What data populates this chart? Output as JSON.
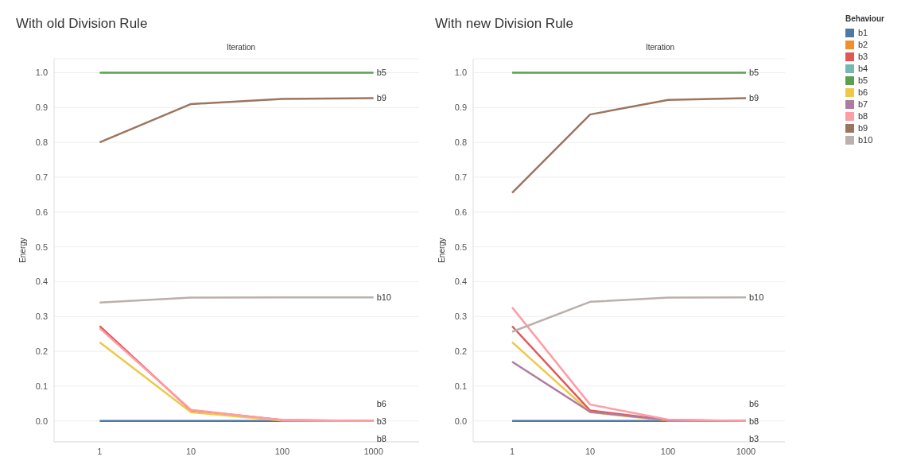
{
  "chart_data": [
    {
      "type": "line",
      "title": "With old Division Rule",
      "xlabel": "Iteration",
      "ylabel": "Energy",
      "categories": [
        "1",
        "10",
        "100",
        "1000"
      ],
      "ylim": [
        -0.06,
        1.04
      ],
      "yticks": [
        {
          "value": 0,
          "label": "0.0"
        },
        {
          "value": 0.1,
          "label": "0.1"
        },
        {
          "value": 0.2,
          "label": "0.2"
        },
        {
          "value": 0.3,
          "label": "0.3"
        },
        {
          "value": 0.4,
          "label": "0.4"
        },
        {
          "value": 0.5,
          "label": "0.5"
        },
        {
          "value": 0.6,
          "label": "0.6"
        },
        {
          "value": 0.7,
          "label": "0.7"
        },
        {
          "value": 0.8,
          "label": "0.8"
        },
        {
          "value": 0.9,
          "label": "0.9"
        },
        {
          "value": 1,
          "label": "1.0"
        }
      ],
      "grid": "y",
      "legend": false,
      "marker": "none",
      "line_style": "solid",
      "series": [
        {
          "color": "#4e79a7",
          "values": [
            0,
            0,
            0,
            0
          ]
        },
        {
          "color": "#e15759",
          "values": [
            0.272,
            0.03,
            0.003,
            0
          ]
        },
        {
          "color": "#59a14f",
          "values": [
            1,
            1,
            1,
            1
          ]
        },
        {
          "color": "#edc948",
          "values": [
            0.226,
            0.025,
            0.001,
            0
          ]
        },
        {
          "color": "#ff9da7",
          "values": [
            0.266,
            0.032,
            0.002,
            0
          ]
        },
        {
          "color": "#9c755f",
          "values": [
            0.8,
            0.91,
            0.925,
            0.927
          ]
        },
        {
          "color": "#bab0ac",
          "values": [
            0.34,
            0.354,
            0.355,
            0.355
          ]
        }
      ],
      "annotations": [
        {
          "text": "b5",
          "x": "1000",
          "y": 1
        },
        {
          "text": "b9",
          "x": "1000",
          "y": 0.927
        },
        {
          "text": "b10",
          "x": "1000",
          "y": 0.355
        },
        {
          "text": "b6",
          "x": "1000",
          "y": 0
        },
        {
          "text": "b3",
          "x": "1000",
          "y": 0
        },
        {
          "text": "b8",
          "x": "1000",
          "y": 0
        }
      ]
    },
    {
      "type": "line",
      "title": "With new Division Rule",
      "xlabel": "Iteration",
      "ylabel": "Energy",
      "categories": [
        "1",
        "10",
        "100",
        "1000"
      ],
      "ylim": [
        -0.06,
        1.04
      ],
      "yticks": [
        {
          "value": 0,
          "label": "0.0"
        },
        {
          "value": 0.1,
          "label": "0.1"
        },
        {
          "value": 0.2,
          "label": "0.2"
        },
        {
          "value": 0.3,
          "label": "0.3"
        },
        {
          "value": 0.4,
          "label": "0.4"
        },
        {
          "value": 0.5,
          "label": "0.5"
        },
        {
          "value": 0.6,
          "label": "0.6"
        },
        {
          "value": 0.7,
          "label": "0.7"
        },
        {
          "value": 0.8,
          "label": "0.8"
        },
        {
          "value": 0.9,
          "label": "0.9"
        },
        {
          "value": 1,
          "label": "1.0"
        }
      ],
      "grid": "y",
      "legend": "right",
      "legend_title": "Behaviour",
      "marker": "none",
      "line_style": "solid",
      "series": [
        {
          "name": "b1",
          "color": "#4e79a7",
          "values": [
            0,
            0,
            0,
            0
          ]
        },
        {
          "name": "b2",
          "color": "#f28e2b",
          "values": [
            null,
            null,
            null,
            null
          ]
        },
        {
          "name": "b3",
          "color": "#e15759",
          "values": [
            0.272,
            0.03,
            0.003,
            0
          ]
        },
        {
          "name": "b4",
          "color": "#76b7b2",
          "values": [
            null,
            null,
            null,
            null
          ]
        },
        {
          "name": "b5",
          "color": "#59a14f",
          "values": [
            1,
            1,
            1,
            1
          ]
        },
        {
          "name": "b6",
          "color": "#edc948",
          "values": [
            0.226,
            0.025,
            0.001,
            0
          ]
        },
        {
          "name": "b7",
          "color": "#b07aa1",
          "values": [
            0.17,
            0.026,
            0.002,
            0
          ]
        },
        {
          "name": "b8",
          "color": "#ff9da7",
          "values": [
            0.326,
            0.047,
            0.004,
            0
          ]
        },
        {
          "name": "b9",
          "color": "#9c755f",
          "values": [
            0.655,
            0.88,
            0.922,
            0.927
          ]
        },
        {
          "name": "b10",
          "color": "#bab0ac",
          "values": [
            0.256,
            0.342,
            0.354,
            0.355
          ]
        }
      ],
      "annotations": [
        {
          "text": "b5",
          "x": "1000",
          "y": 1
        },
        {
          "text": "b9",
          "x": "1000",
          "y": 0.927
        },
        {
          "text": "b10",
          "x": "1000",
          "y": 0.355
        },
        {
          "text": "b6",
          "x": "1000",
          "y": 0
        },
        {
          "text": "b8",
          "x": "1000",
          "y": 0
        },
        {
          "text": "b3",
          "x": "1000",
          "y": 0
        }
      ]
    }
  ]
}
